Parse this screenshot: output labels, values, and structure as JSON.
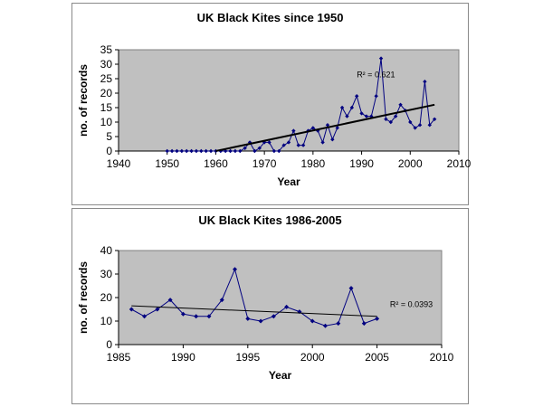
{
  "colors": {
    "plot_bg": "#c0c0c0",
    "series": "#000080",
    "trend": "#000000"
  },
  "chart_data": [
    {
      "type": "scatter",
      "title": "UK Black Kites since 1950",
      "xlabel": "Year",
      "ylabel": "no. of records",
      "xlim": [
        1940,
        2010
      ],
      "ylim": [
        0,
        35
      ],
      "xticks": [
        1940,
        1950,
        1960,
        1970,
        1980,
        1990,
        2000,
        2010
      ],
      "yticks": [
        0,
        5,
        10,
        15,
        20,
        25,
        30,
        35
      ],
      "grid": false,
      "series": [
        {
          "x": [
            1950,
            1951,
            1952,
            1953,
            1954,
            1955,
            1956,
            1957,
            1958,
            1959,
            1960,
            1961,
            1962,
            1963,
            1964,
            1965,
            1966,
            1967,
            1968,
            1969,
            1970,
            1971,
            1972,
            1973,
            1974,
            1975,
            1976,
            1977,
            1978,
            1979,
            1980,
            1981,
            1982,
            1983,
            1984,
            1985,
            1986,
            1987,
            1988,
            1989,
            1990,
            1991,
            1992,
            1993,
            1994,
            1995,
            1996,
            1997,
            1998,
            1999,
            2000,
            2001,
            2002,
            2003,
            2004,
            2005
          ],
          "y": [
            0,
            0,
            0,
            0,
            0,
            0,
            0,
            0,
            0,
            0,
            0,
            0,
            0,
            0,
            0,
            0,
            1,
            3,
            0,
            1,
            3,
            3,
            0,
            0,
            2,
            3,
            7,
            2,
            2,
            7,
            8,
            7,
            3,
            9,
            4,
            8,
            15,
            12,
            15,
            19,
            13,
            12,
            12,
            19,
            32,
            11,
            10,
            12,
            16,
            14,
            10,
            8,
            9,
            24,
            9,
            11
          ]
        }
      ],
      "trendline": {
        "x": [
          1960,
          2005
        ],
        "y": [
          0,
          16
        ],
        "r2_label": "R² = 0.621",
        "r2_pos": [
          1989,
          25.5
        ]
      }
    },
    {
      "type": "line",
      "title": "UK Black Kites 1986-2005",
      "xlabel": "Year",
      "ylabel": "no. of records",
      "xlim": [
        1985,
        2010
      ],
      "ylim": [
        0,
        40
      ],
      "xticks": [
        1985,
        1990,
        1995,
        2000,
        2005,
        2010
      ],
      "yticks": [
        0,
        10,
        20,
        30,
        40
      ],
      "grid": false,
      "series": [
        {
          "x": [
            1986,
            1987,
            1988,
            1989,
            1990,
            1991,
            1992,
            1993,
            1994,
            1995,
            1996,
            1997,
            1998,
            1999,
            2000,
            2001,
            2002,
            2003,
            2004,
            2005
          ],
          "y": [
            15,
            12,
            15,
            19,
            13,
            12,
            12,
            19,
            32,
            11,
            10,
            12,
            16,
            14,
            10,
            8,
            9,
            24,
            9,
            11
          ]
        }
      ],
      "trendline": {
        "x": [
          1986,
          2005
        ],
        "y": [
          16.5,
          12
        ],
        "r2_label": "R² = 0.0393",
        "r2_pos": [
          2006,
          16
        ]
      }
    }
  ]
}
